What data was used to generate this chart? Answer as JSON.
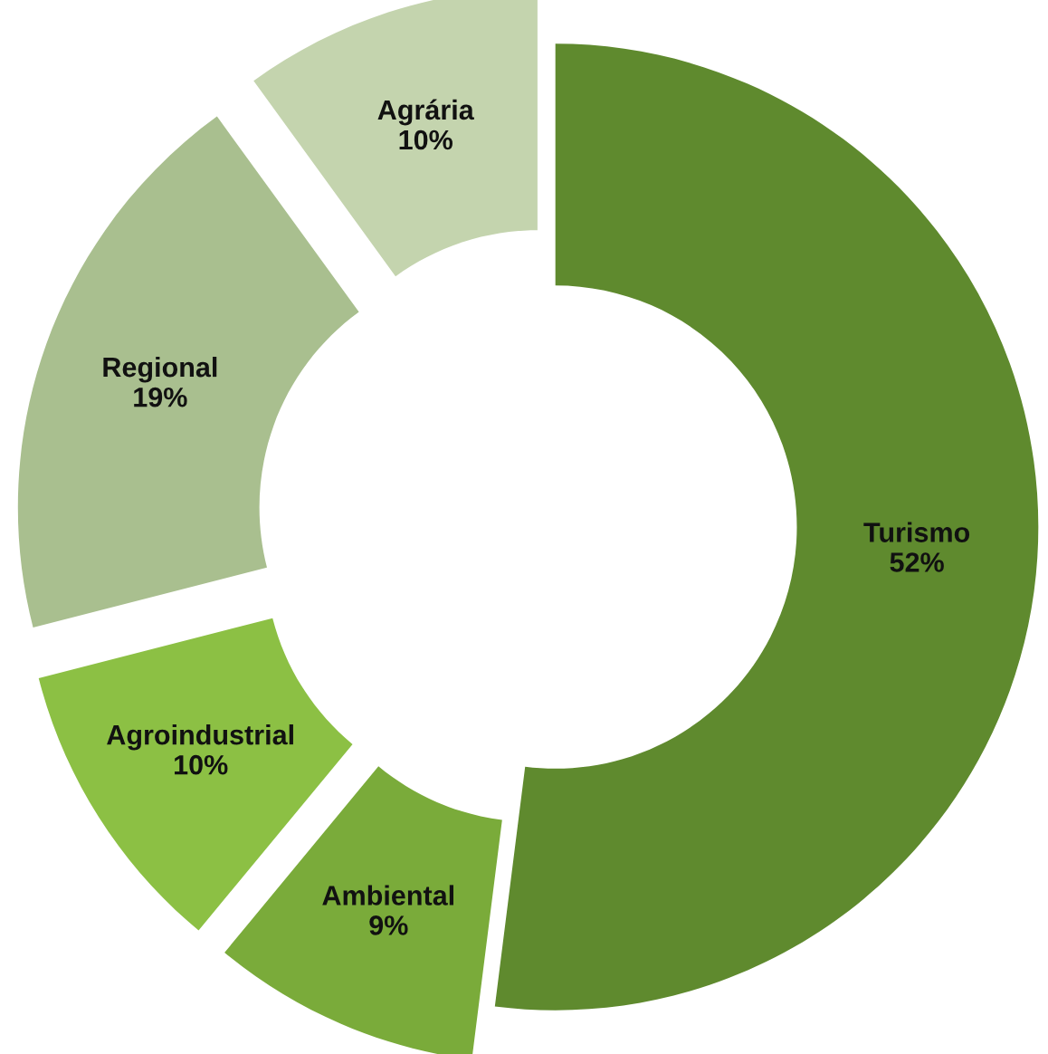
{
  "chart_data": {
    "type": "donut",
    "categories": [
      "Turismo",
      "Ambiental",
      "Agroindustrial",
      "Regional",
      "Agrária"
    ],
    "values": [
      52,
      9,
      10,
      19,
      10
    ],
    "colors": [
      "#5f8a2e",
      "#7aab3a",
      "#8cc044",
      "#a9bf8f",
      "#c4d4ae"
    ],
    "value_labels": [
      "52%",
      "9%",
      "10%",
      "19%",
      "10%"
    ],
    "legend": false
  }
}
